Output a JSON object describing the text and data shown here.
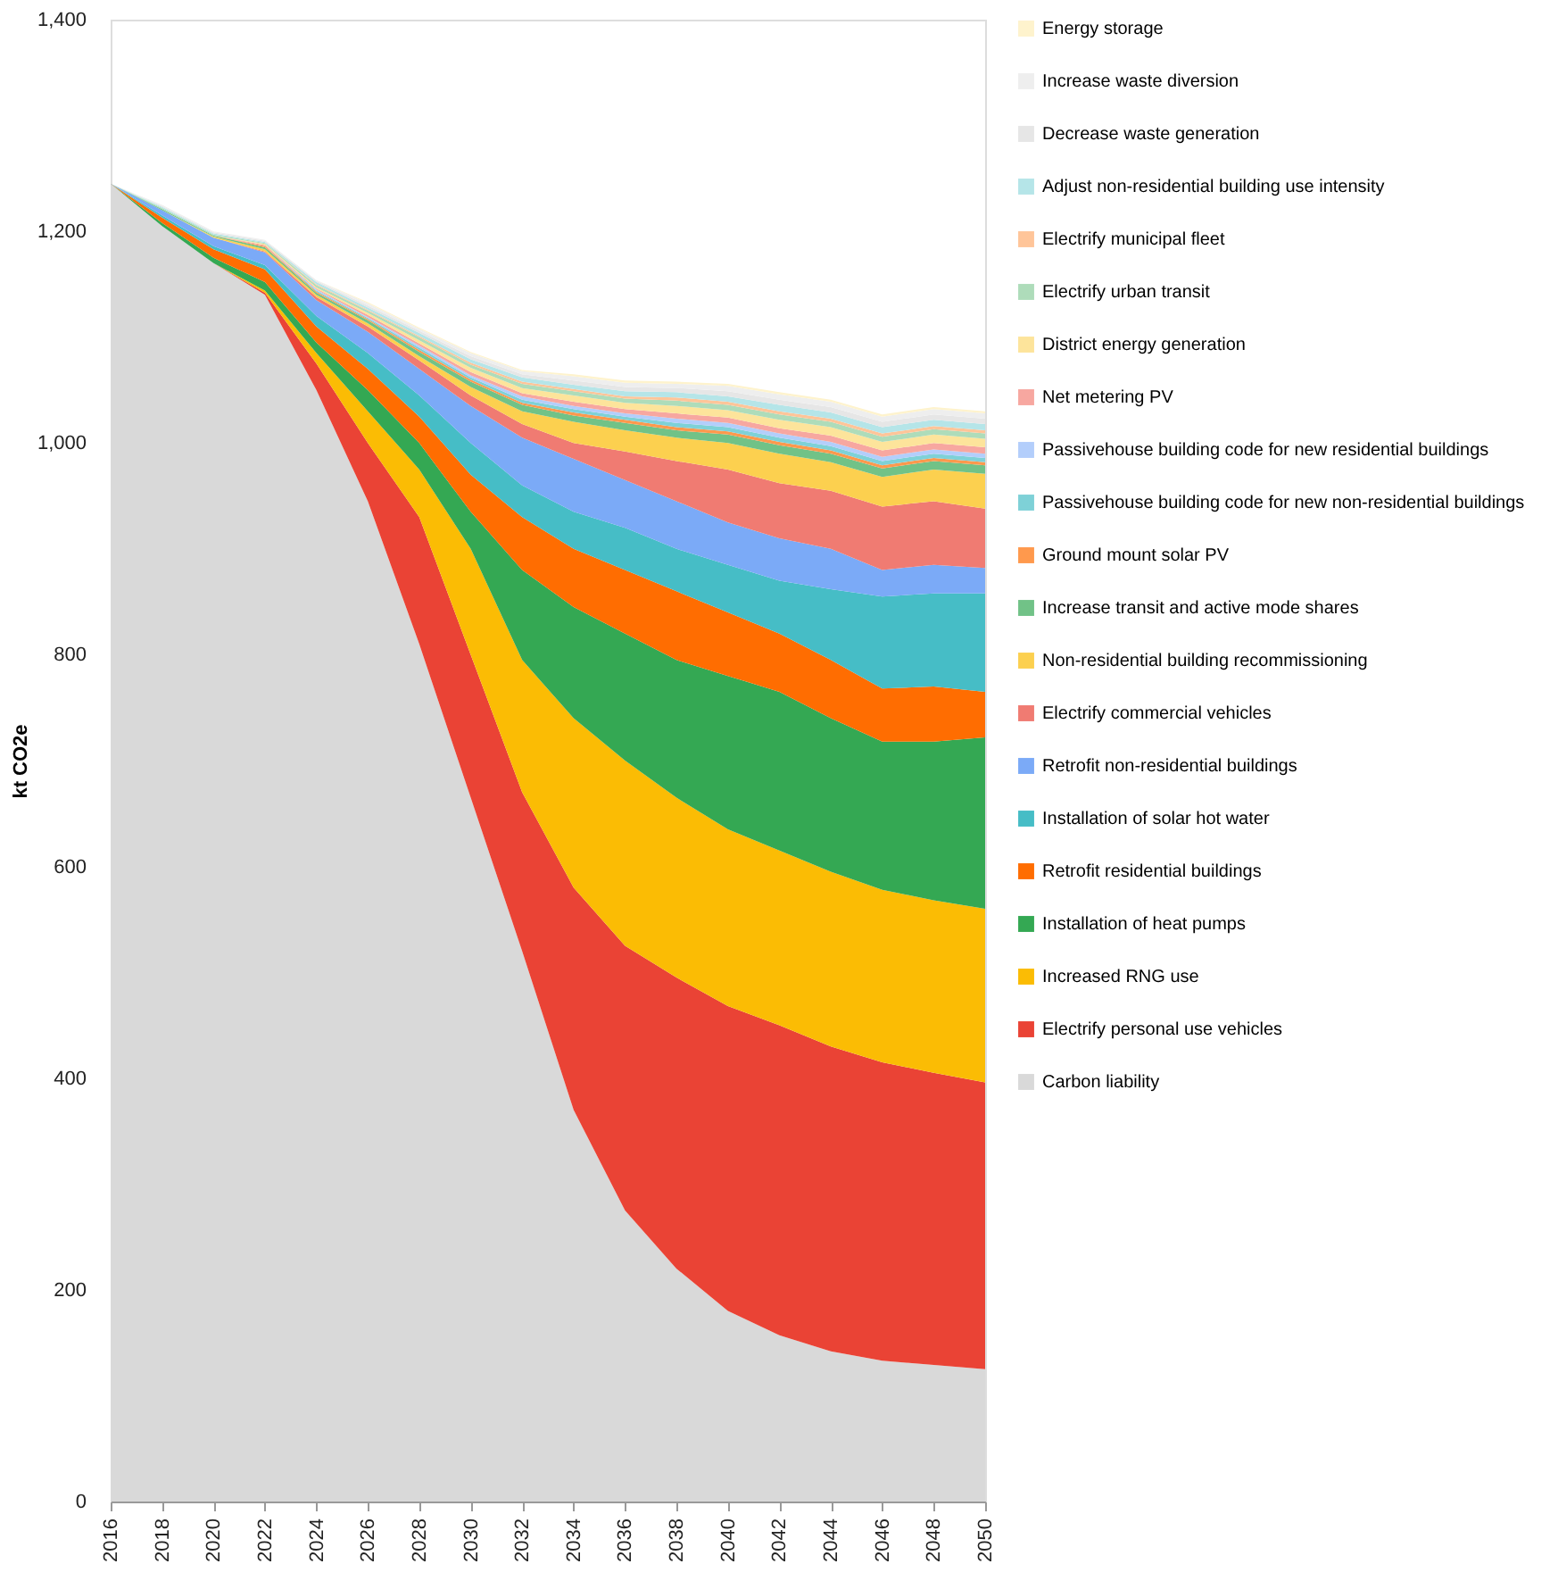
{
  "chart_data": {
    "type": "area",
    "stacked": true,
    "ylabel": "kt CO2e",
    "legend": "right",
    "x": [
      2016,
      2018,
      2020,
      2022,
      2024,
      2026,
      2028,
      2030,
      2032,
      2034,
      2036,
      2038,
      2040,
      2042,
      2044,
      2046,
      2048,
      2050
    ],
    "xlim": [
      2016,
      2050
    ],
    "xticks": [
      2016,
      2018,
      2020,
      2022,
      2024,
      2026,
      2028,
      2030,
      2032,
      2034,
      2036,
      2038,
      2040,
      2042,
      2044,
      2046,
      2048,
      2050
    ],
    "ylim": [
      0,
      1400
    ],
    "yticks": [
      {
        "value": 0,
        "label": "0"
      },
      {
        "value": 200,
        "label": "200"
      },
      {
        "value": 400,
        "label": "400"
      },
      {
        "value": 600,
        "label": "600"
      },
      {
        "value": 800,
        "label": "800"
      },
      {
        "value": 1000,
        "label": "1,000"
      },
      {
        "value": 1200,
        "label": "1,200"
      },
      {
        "value": 1400,
        "label": "1,400"
      }
    ],
    "series": [
      {
        "name": "Carbon liability",
        "color": "#d9d9d9",
        "values": [
          1245,
          1205,
          1170,
          1140,
          1050,
          945,
          810,
          665,
          520,
          370,
          275,
          220,
          180,
          157,
          142,
          133,
          129,
          125
        ]
      },
      {
        "name": "Electrify personal use vehicles",
        "color": "#ea4335",
        "values": [
          0,
          0,
          0,
          2,
          25,
          55,
          120,
          135,
          150,
          210,
          250,
          275,
          288,
          293,
          288,
          282,
          276,
          271
        ]
      },
      {
        "name": "Increased RNG use",
        "color": "#fbbc04",
        "values": [
          0,
          0,
          0,
          2,
          10,
          30,
          45,
          100,
          125,
          160,
          175,
          170,
          167,
          165,
          165,
          163,
          163,
          164
        ]
      },
      {
        "name": "Installation of heat pumps",
        "color": "#34a853",
        "values": [
          0,
          3,
          5,
          8,
          10,
          20,
          25,
          35,
          85,
          105,
          120,
          130,
          145,
          150,
          145,
          140,
          150,
          162
        ]
      },
      {
        "name": "Retrofit residential buildings",
        "color": "#ff6d01",
        "values": [
          0,
          5,
          8,
          12,
          15,
          20,
          25,
          35,
          50,
          55,
          60,
          65,
          60,
          55,
          55,
          50,
          52,
          43
        ]
      },
      {
        "name": "Installation of solar hot water",
        "color": "#46bdc6",
        "values": [
          0,
          2,
          3,
          4,
          10,
          15,
          20,
          30,
          30,
          35,
          40,
          40,
          45,
          50,
          67,
          87,
          88,
          93
        ]
      },
      {
        "name": "Retrofit non-residential buildings",
        "color": "#7baaf7",
        "values": [
          0,
          5,
          8,
          12,
          15,
          20,
          25,
          35,
          45,
          50,
          45,
          45,
          40,
          40,
          38,
          25,
          27,
          24
        ]
      },
      {
        "name": "Electrify commercial vehicles",
        "color": "#f07b72",
        "values": [
          0,
          0,
          0,
          1,
          3,
          5,
          8,
          10,
          13,
          15,
          27,
          38,
          50,
          52,
          55,
          60,
          60,
          56
        ]
      },
      {
        "name": "Non-residential building recommissioning",
        "color": "#fcd04f",
        "values": [
          0,
          0,
          1,
          2,
          2,
          3,
          4,
          8,
          12,
          20,
          20,
          22,
          25,
          28,
          27,
          28,
          30,
          33
        ]
      },
      {
        "name": "Increase transit and active mode shares",
        "color": "#71c287",
        "values": [
          0,
          1,
          1,
          2,
          2,
          3,
          4,
          5,
          6,
          6,
          7,
          7,
          8,
          8,
          8,
          8,
          8,
          8
        ]
      },
      {
        "name": "Ground mount solar PV",
        "color": "#ff994d",
        "values": [
          0,
          0,
          0,
          1,
          1,
          1,
          2,
          2,
          2,
          3,
          3,
          3,
          3,
          3,
          3,
          3,
          3,
          3
        ]
      },
      {
        "name": "Passivehouse building code for new non-residential buildings",
        "color": "#7ed1d7",
        "values": [
          0,
          0,
          0,
          0,
          1,
          1,
          2,
          2,
          3,
          3,
          3,
          4,
          4,
          4,
          4,
          4,
          4,
          4
        ]
      },
      {
        "name": "Passivehouse building code for new residential buildings",
        "color": "#b3cefb",
        "values": [
          0,
          0,
          0,
          0,
          1,
          1,
          2,
          2,
          3,
          3,
          3,
          4,
          4,
          4,
          4,
          4,
          4,
          4
        ]
      },
      {
        "name": "Net metering PV",
        "color": "#f7a7a0",
        "values": [
          0,
          0,
          0,
          1,
          1,
          2,
          2,
          3,
          3,
          4,
          4,
          5,
          5,
          5,
          6,
          6,
          6,
          6
        ]
      },
      {
        "name": "District energy generation",
        "color": "#fde49b",
        "values": [
          0,
          0,
          0,
          1,
          1,
          2,
          3,
          4,
          5,
          6,
          6,
          7,
          7,
          8,
          8,
          8,
          8,
          8
        ]
      },
      {
        "name": "Electrify urban transit",
        "color": "#aedcba",
        "values": [
          0,
          1,
          1,
          1,
          2,
          2,
          3,
          3,
          4,
          4,
          4,
          5,
          5,
          5,
          5,
          5,
          5,
          5
        ]
      },
      {
        "name": "Electrify municipal fleet",
        "color": "#ffc599",
        "values": [
          0,
          0,
          0,
          0,
          1,
          1,
          1,
          2,
          2,
          2,
          2,
          3,
          3,
          3,
          3,
          3,
          3,
          3
        ]
      },
      {
        "name": "Adjust non-residential building use intensity",
        "color": "#b5e5e8",
        "values": [
          0,
          1,
          1,
          1,
          2,
          2,
          3,
          3,
          4,
          4,
          5,
          5,
          5,
          6,
          6,
          6,
          6,
          6
        ]
      },
      {
        "name": "Decrease waste generation",
        "color": "#e6e6e6",
        "values": [
          0,
          1,
          1,
          1,
          1,
          2,
          2,
          3,
          3,
          4,
          4,
          4,
          5,
          5,
          5,
          5,
          5,
          5
        ]
      },
      {
        "name": "Increase waste diversion",
        "color": "#eeeeee",
        "values": [
          0,
          1,
          1,
          1,
          1,
          2,
          2,
          3,
          3,
          4,
          4,
          4,
          5,
          5,
          5,
          5,
          5,
          5
        ]
      },
      {
        "name": "Energy storage",
        "color": "#fef3cd",
        "values": [
          0,
          0,
          0,
          0,
          0,
          1,
          1,
          1,
          1,
          2,
          2,
          2,
          2,
          2,
          2,
          2,
          2,
          2
        ]
      }
    ]
  }
}
